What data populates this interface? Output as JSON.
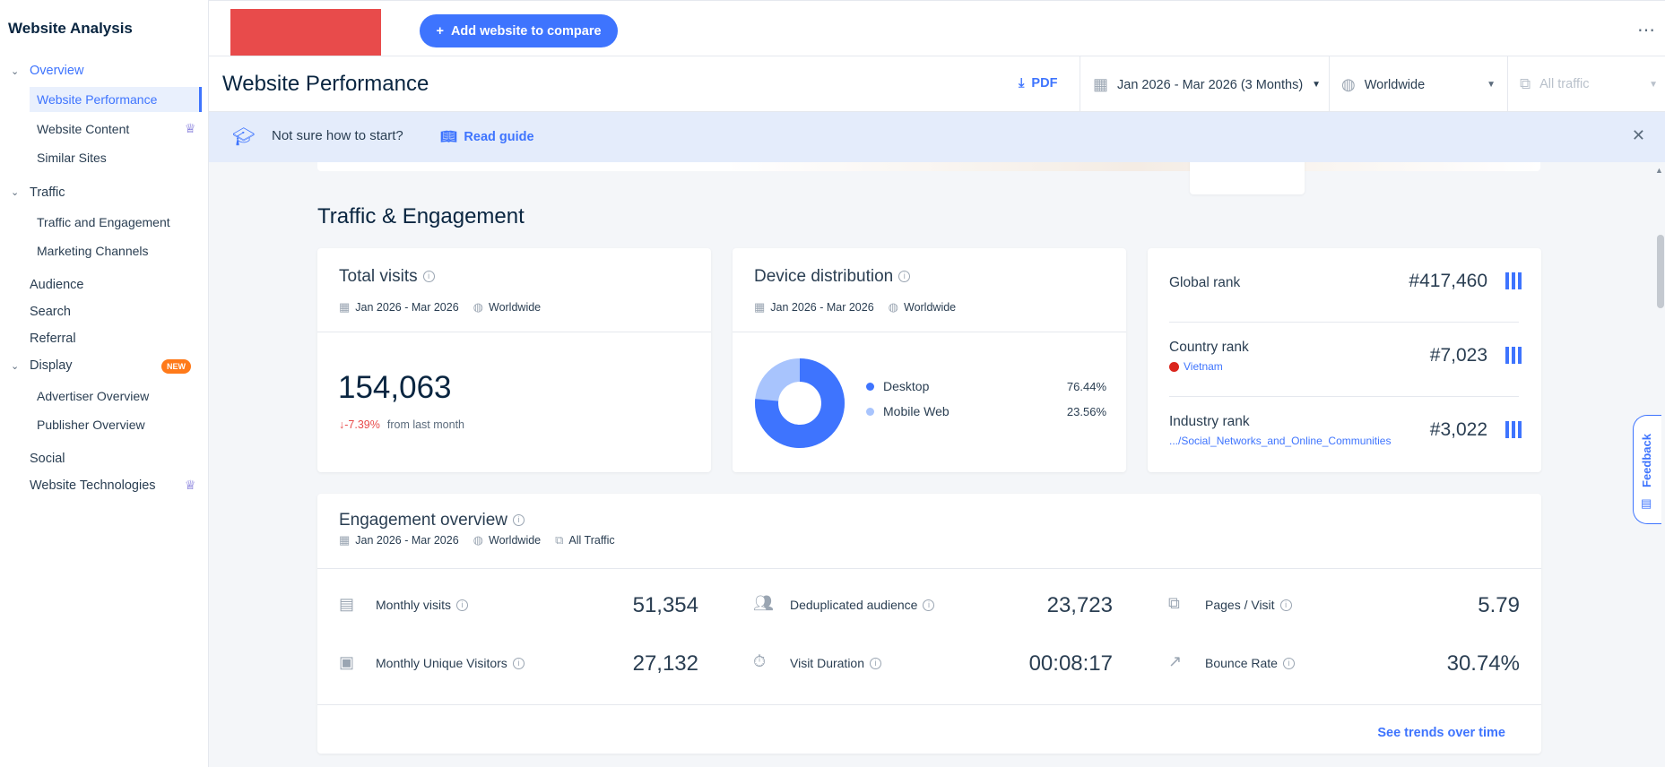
{
  "sidebar": {
    "title": "Website Analysis",
    "sections": {
      "overview": {
        "label": "Overview",
        "items": [
          "Website Performance",
          "Website Content",
          "Similar Sites"
        ]
      },
      "traffic": {
        "label": "Traffic",
        "items": [
          "Traffic and Engagement",
          "Marketing Channels"
        ]
      },
      "audience": "Audience",
      "search": "Search",
      "referral": "Referral",
      "display": {
        "label": "Display",
        "badge": "NEW",
        "items": [
          "Advertiser Overview",
          "Publisher Overview"
        ]
      },
      "social": "Social",
      "website_technologies": "Website Technologies"
    }
  },
  "topbar": {
    "add_button_label": "Add website to compare"
  },
  "header": {
    "title": "Website Performance",
    "pdf_label": "PDF",
    "date_range": "Jan 2026 - Mar 2026 (3 Months)",
    "region": "Worldwide",
    "traffic_type": "All traffic"
  },
  "banner": {
    "question": "Not sure how to start?",
    "guide_label": "Read guide"
  },
  "traffic_section": {
    "title": "Traffic & Engagement",
    "total_visits": {
      "title": "Total visits",
      "date": "Jan 2026 - Mar 2026",
      "region": "Worldwide",
      "value": "154,063",
      "change": "-7.39%",
      "change_label": "from last month"
    },
    "device": {
      "title": "Device distribution",
      "date": "Jan 2026 - Mar 2026",
      "region": "Worldwide",
      "desktop_label": "Desktop",
      "desktop_value": "76.44%",
      "mobile_label": "Mobile Web",
      "mobile_value": "23.56%",
      "desktop_share": 0.7644,
      "desktop_color": "#3e74fe",
      "mobile_color": "#a8c4fd"
    },
    "ranks": {
      "global_label": "Global rank",
      "global_value": "#417,460",
      "country_label": "Country rank",
      "country_name": "Vietnam",
      "country_value": "#7,023",
      "industry_label": "Industry rank",
      "industry_name": ".../Social_Networks_and_Online_Communities",
      "industry_value": "#3,022"
    }
  },
  "engagement": {
    "title": "Engagement overview",
    "date": "Jan 2026 - Mar 2026",
    "region": "Worldwide",
    "traffic": "All Traffic",
    "monthly_visits_label": "Monthly visits",
    "monthly_visits_value": "51,354",
    "dedup_label": "Deduplicated audience",
    "dedup_value": "23,723",
    "pages_label": "Pages / Visit",
    "pages_value": "5.79",
    "unique_label": "Monthly Unique Visitors",
    "unique_value": "27,132",
    "duration_label": "Visit Duration",
    "duration_value": "00:08:17",
    "bounce_label": "Bounce Rate",
    "bounce_value": "30.74%",
    "trends_label": "See trends over time"
  },
  "feedback_label": "Feedback"
}
